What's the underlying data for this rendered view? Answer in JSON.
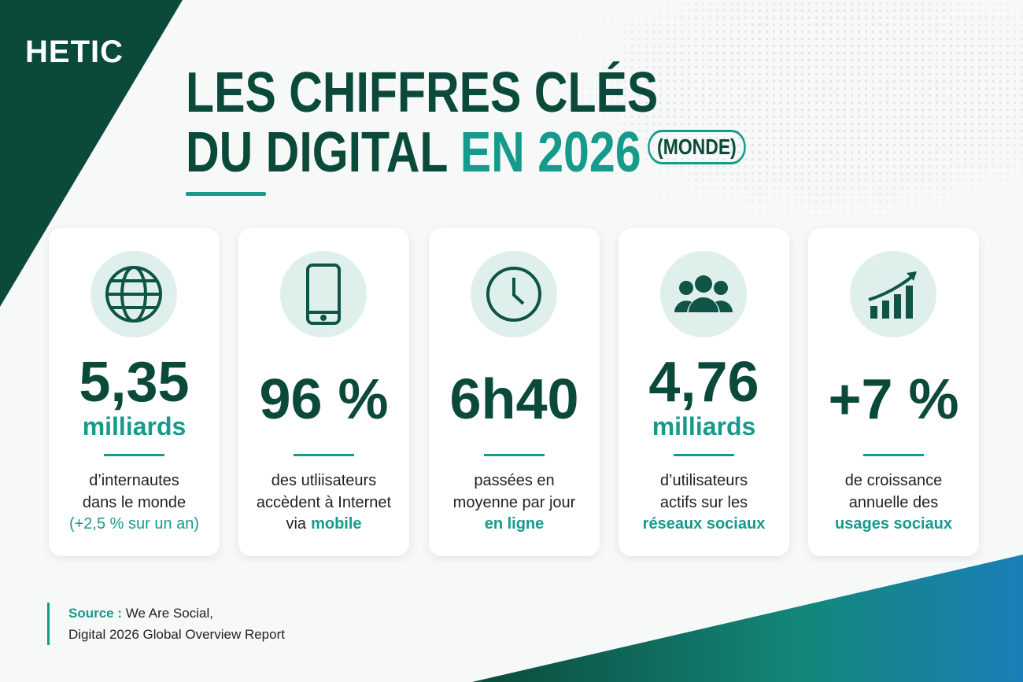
{
  "header": {
    "brand": "HETIC",
    "title_line1": "LES CHIFFRES CLÉS",
    "title_line2": "DU DIGITAL",
    "title_accent": "EN 2026",
    "title_badge": "(MONDE)"
  },
  "cards": [
    {
      "value": "5,35",
      "unit": "milliards",
      "lines": [
        [
          {
            "text": "d’internautes"
          }
        ],
        [
          {
            "text": "dans le monde"
          }
        ],
        [
          {
            "text": "(+2,5 % sur un an)",
            "accent": true
          }
        ]
      ]
    },
    {
      "value": "96 %",
      "lines": [
        [
          {
            "text": "des utliisateurs"
          }
        ],
        [
          {
            "text": "accèdent à Internet"
          }
        ],
        [
          {
            "text": "via"
          },
          {
            "text": "mobile",
            "emphasis": true
          }
        ]
      ]
    },
    {
      "value": "6h40",
      "lines": [
        [
          {
            "text": "passées en"
          }
        ],
        [
          {
            "text": "moyenne par jour"
          }
        ],
        [
          {
            "text": "en ligne",
            "emphasis": true
          }
        ]
      ]
    },
    {
      "value": "4,76",
      "unit": "milliards",
      "lines": [
        [
          {
            "text": "d’utilisateurs"
          }
        ],
        [
          {
            "text": "actifs sur les"
          }
        ],
        [
          {
            "text": "réseaux sociaux",
            "emphasis": true
          }
        ]
      ]
    },
    {
      "value": "+7 %",
      "lines": [
        [
          {
            "text": "de croissance"
          }
        ],
        [
          {
            "text": "annuelle des"
          }
        ],
        [
          {
            "text": "usages sociaux",
            "emphasis": true
          }
        ]
      ]
    }
  ],
  "source": {
    "label": "Source :",
    "line1": "We Are Social,",
    "line2": "Digital 2026 Global Overview Report"
  }
}
